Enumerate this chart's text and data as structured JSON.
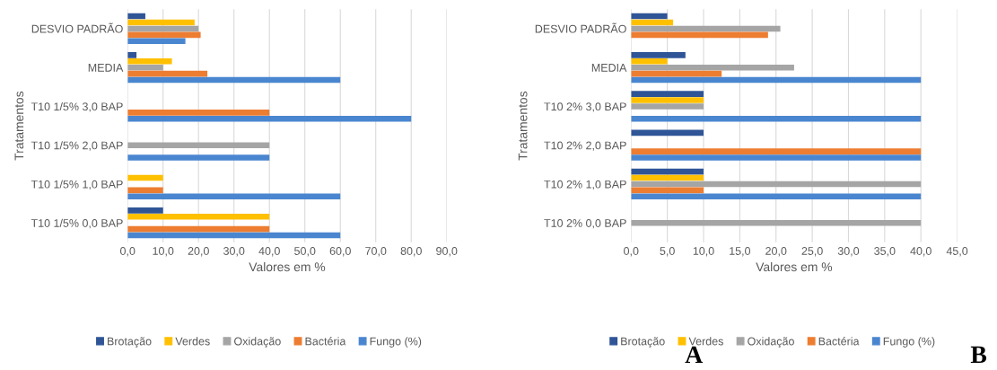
{
  "chart_data": [
    {
      "type": "bar",
      "orientation": "horizontal",
      "xlabel": "Valores em %",
      "ylabel": "Tratamentos",
      "annotations": [
        "A"
      ],
      "categories": [
        "DESVIO PADRÃO",
        "MEDIA",
        "T10 1/5% 3,0 BAP",
        "T10 1/5% 2,0 BAP",
        "T10 1/5% 1,0 BAP",
        "T10 1/5% 0,0 BAP"
      ],
      "series": [
        {
          "name": "Brotação",
          "color": "#2f5597",
          "values": [
            5,
            2.5,
            null,
            null,
            null,
            10
          ]
        },
        {
          "name": "Verdes",
          "color": "#ffc000",
          "values": [
            18.9,
            12.5,
            null,
            null,
            10,
            40
          ]
        },
        {
          "name": "Oxidação",
          "color": "#a5a5a5",
          "values": [
            20,
            10,
            null,
            40,
            null,
            null
          ]
        },
        {
          "name": "Bactéria",
          "color": "#ed7d31",
          "values": [
            20.6,
            22.5,
            40,
            null,
            10,
            40
          ]
        },
        {
          "name": "Fungo (%)",
          "color": "#4a86d0",
          "values": [
            16.3,
            60,
            80,
            40,
            60,
            60
          ]
        }
      ],
      "xlim": [
        0,
        90
      ],
      "xticks": [
        {
          "value": 0,
          "label": "0,0"
        },
        {
          "value": 10,
          "label": "10,0"
        },
        {
          "value": 20,
          "label": "20,0"
        },
        {
          "value": 30,
          "label": "30,0"
        },
        {
          "value": 40,
          "label": "40,0"
        },
        {
          "value": 50,
          "label": "50,0"
        },
        {
          "value": 60,
          "label": "60,0"
        },
        {
          "value": 70,
          "label": "70,0"
        },
        {
          "value": 80,
          "label": "80,0"
        },
        {
          "value": 90,
          "label": "90,0"
        }
      ],
      "grid": "x",
      "legend": "bottom"
    },
    {
      "type": "bar",
      "orientation": "horizontal",
      "xlabel": "Valores em %",
      "ylabel": "Tratamentos",
      "annotations": [
        "B"
      ],
      "categories": [
        "DESVIO PADRÃO",
        "MEDIA",
        "T10 2% 3,0 BAP",
        "T10 2% 2,0 BAP",
        "T10 2% 1,0 BAP",
        "T10 2% 0,0 BAP"
      ],
      "series": [
        {
          "name": "Brotação",
          "color": "#2f5597",
          "values": [
            5,
            7.5,
            10,
            10,
            10,
            null
          ]
        },
        {
          "name": "Verdes",
          "color": "#ffc000",
          "values": [
            5.8,
            5,
            10,
            null,
            10,
            null
          ]
        },
        {
          "name": "Oxidação",
          "color": "#a5a5a5",
          "values": [
            20.6,
            22.5,
            10,
            null,
            40,
            40
          ]
        },
        {
          "name": "Bactéria",
          "color": "#ed7d31",
          "values": [
            18.9,
            12.5,
            null,
            40,
            10,
            null
          ]
        },
        {
          "name": "Fungo (%)",
          "color": "#4a86d0",
          "values": [
            null,
            40,
            40,
            40,
            40,
            null
          ]
        }
      ],
      "xlim": [
        0,
        45
      ],
      "xticks": [
        {
          "value": 0,
          "label": "0,0"
        },
        {
          "value": 5,
          "label": "5,0"
        },
        {
          "value": 10,
          "label": "10,0"
        },
        {
          "value": 15,
          "label": "15,0"
        },
        {
          "value": 20,
          "label": "20,0"
        },
        {
          "value": 25,
          "label": "25,0"
        },
        {
          "value": 30,
          "label": "30,0"
        },
        {
          "value": 35,
          "label": "35,0"
        },
        {
          "value": 40,
          "label": "40,0"
        },
        {
          "value": 45,
          "label": "45,0"
        }
      ],
      "grid": "x",
      "legend": "bottom"
    }
  ]
}
